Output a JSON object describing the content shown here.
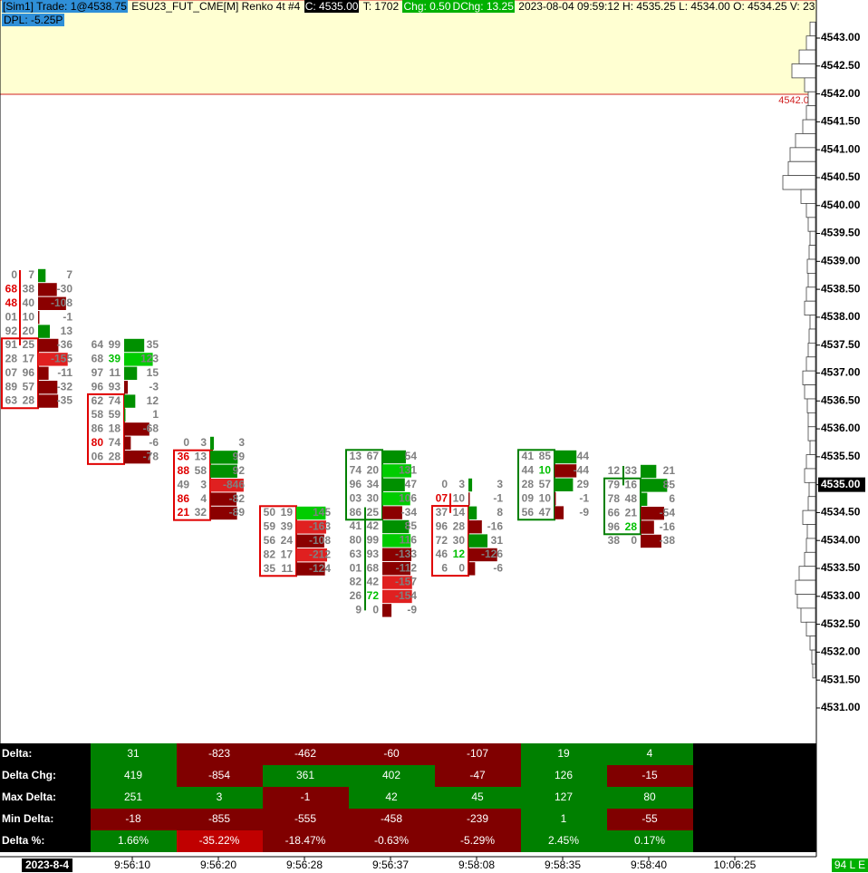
{
  "header": {
    "account": "[Sim1]  Trade: 1@4538.75",
    "symbol": "ESU23_FUT_CME[M]  Renko 4t #4",
    "close": "C: 4535.00",
    "trades": "T: 1702",
    "change": "Chg: 0.50",
    "day_change": "DChg: 13.25",
    "info": "2023-08-04 09:59:12 H: 4535.25 L: 4534.00 O: 4534.25 V: 23",
    "dpl": "DPL: -5.25P"
  },
  "price_axis": {
    "labels": [
      "4543.00",
      "4542.50",
      "4542.00",
      "4541.50",
      "4541.00",
      "4540.50",
      "4540.00",
      "4539.50",
      "4539.00",
      "4538.50",
      "4538.00",
      "4537.50",
      "4537.00",
      "4536.50",
      "4536.00",
      "4535.50",
      "4535.00",
      "4534.50",
      "4534.00",
      "4533.50",
      "4533.00",
      "4532.50",
      "4532.00",
      "4531.50",
      "4531.00"
    ],
    "current": "4535.00",
    "zone_label": "4542.00"
  },
  "footprints": [
    {
      "rows": [
        {
          "bid": "0",
          "ask": "7",
          "delta": 7
        },
        {
          "bid": "68",
          "ask": "38",
          "delta": -30,
          "bid_color": "#e00000"
        },
        {
          "bid": "48",
          "ask": "40",
          "delta": -108,
          "bid_color": "#e00000"
        },
        {
          "bid": "01",
          "ask": "10",
          "delta": -1
        },
        {
          "bid": "92",
          "ask": "20",
          "delta": 13
        },
        {
          "bid": "91",
          "ask": "25",
          "delta": -36
        },
        {
          "bid": "28",
          "ask": "17",
          "delta": -155
        },
        {
          "bid": "07",
          "ask": "96",
          "delta": -11
        },
        {
          "bid": "89",
          "ask": "57",
          "delta": -32
        },
        {
          "bid": "63",
          "ask": "28",
          "delta": -35
        }
      ]
    },
    {
      "rows": [
        {
          "bid": "64",
          "ask": "99",
          "delta": 35
        },
        {
          "bid": "68",
          "ask": "39",
          "delta": 123,
          "ask_color": "#00c000"
        },
        {
          "bid": "97",
          "ask": "11",
          "delta": 15
        },
        {
          "bid": "96",
          "ask": "93",
          "delta": -3
        },
        {
          "bid": "62",
          "ask": "74",
          "delta": 12
        },
        {
          "bid": "58",
          "ask": "59",
          "delta": 1
        },
        {
          "bid": "86",
          "ask": "18",
          "delta": -68
        },
        {
          "bid": "80",
          "ask": "74",
          "delta": -6,
          "bid_color": "#e00000"
        },
        {
          "bid": "06",
          "ask": "28",
          "delta": -78
        }
      ]
    },
    {
      "rows": [
        {
          "bid": "0",
          "ask": "3",
          "delta": 3
        },
        {
          "bid": "36",
          "ask": "13",
          "delta": 99,
          "bid_color": "#e00000"
        },
        {
          "bid": "88",
          "ask": "58",
          "delta": 92,
          "bid_color": "#e00000"
        },
        {
          "bid": "49",
          "ask": "3",
          "delta": -846
        },
        {
          "bid": "86",
          "ask": "4",
          "delta": -82,
          "bid_color": "#e00000"
        },
        {
          "bid": "21",
          "ask": "32",
          "delta": -89,
          "bid_color": "#e00000"
        }
      ]
    },
    {
      "rows": [
        {
          "bid": "50",
          "ask": "19",
          "delta": 145
        },
        {
          "bid": "59",
          "ask": "39",
          "delta": -163
        },
        {
          "bid": "56",
          "ask": "24",
          "delta": -108
        },
        {
          "bid": "82",
          "ask": "17",
          "delta": -212
        },
        {
          "bid": "35",
          "ask": "11",
          "delta": -124
        }
      ]
    },
    {
      "rows": [
        {
          "bid": "13",
          "ask": "67",
          "delta": 54
        },
        {
          "bid": "74",
          "ask": "20",
          "delta": 131
        },
        {
          "bid": "96",
          "ask": "34",
          "delta": 47
        },
        {
          "bid": "03",
          "ask": "30",
          "delta": 106
        },
        {
          "bid": "86",
          "ask": "25",
          "delta": -34
        },
        {
          "bid": "41",
          "ask": "42",
          "delta": 85
        },
        {
          "bid": "80",
          "ask": "99",
          "delta": 116
        },
        {
          "bid": "63",
          "ask": "93",
          "delta": -133
        },
        {
          "bid": "01",
          "ask": "68",
          "delta": -112
        },
        {
          "bid": "82",
          "ask": "42",
          "delta": -157
        },
        {
          "bid": "26",
          "ask": "72",
          "delta": -154,
          "ask_color": "#00c000"
        },
        {
          "bid": "9",
          "ask": "0",
          "delta": -9
        }
      ]
    },
    {
      "rows": [
        {
          "bid": "0",
          "ask": "3",
          "delta": 3
        },
        {
          "bid": "07",
          "ask": "10",
          "delta": -1,
          "bid_color": "#e00000"
        },
        {
          "bid": "37",
          "ask": "14",
          "delta": 8
        },
        {
          "bid": "96",
          "ask": "28",
          "delta": -16
        },
        {
          "bid": "72",
          "ask": "30",
          "delta": 31
        },
        {
          "bid": "46",
          "ask": "12",
          "delta": -126,
          "ask_color": "#00c000"
        },
        {
          "bid": "6",
          "ask": "0",
          "delta": -6
        }
      ]
    },
    {
      "rows": [
        {
          "bid": "41",
          "ask": "85",
          "delta": 44
        },
        {
          "bid": "44",
          "ask": "10",
          "delta": -44,
          "ask_color": "#00c000"
        },
        {
          "bid": "28",
          "ask": "57",
          "delta": 29
        },
        {
          "bid": "09",
          "ask": "10",
          "delta": -1
        },
        {
          "bid": "56",
          "ask": "47",
          "delta": -9
        }
      ]
    },
    {
      "rows": [
        {
          "bid": "12",
          "ask": "33",
          "delta": 21
        },
        {
          "bid": "79",
          "ask": "16",
          "delta": 85
        },
        {
          "bid": "78",
          "ask": "48",
          "delta": 6
        },
        {
          "bid": "66",
          "ask": "21",
          "delta": -54
        },
        {
          "bid": "96",
          "ask": "28",
          "delta": -16,
          "ask_color": "#00c000"
        },
        {
          "bid": "38",
          "ask": "0",
          "delta": -38
        }
      ]
    }
  ],
  "stats": {
    "labels": [
      "Delta:",
      "Delta Chg:",
      "Max Delta:",
      "Min Delta:",
      "Delta %:"
    ],
    "rows": [
      [
        31,
        -823,
        -462,
        -60,
        -107,
        19,
        4
      ],
      [
        419,
        -854,
        361,
        402,
        -47,
        126,
        -15
      ],
      [
        251,
        3,
        -1,
        42,
        45,
        127,
        80
      ],
      [
        -18,
        -855,
        -555,
        -458,
        -239,
        1,
        -55
      ],
      [
        "1.66%",
        "-35.22%",
        "-18.47%",
        "-0.63%",
        "-5.29%",
        "2.45%",
        "0.17%"
      ]
    ]
  },
  "time_axis": {
    "date": "2023-8-4",
    "times": [
      "9:56:10",
      "9:56:20",
      "9:56:28",
      "9:56:37",
      "9:58:08",
      "9:58:35",
      "9:58:40",
      "10:06:25"
    ]
  },
  "status": "94 L E"
}
